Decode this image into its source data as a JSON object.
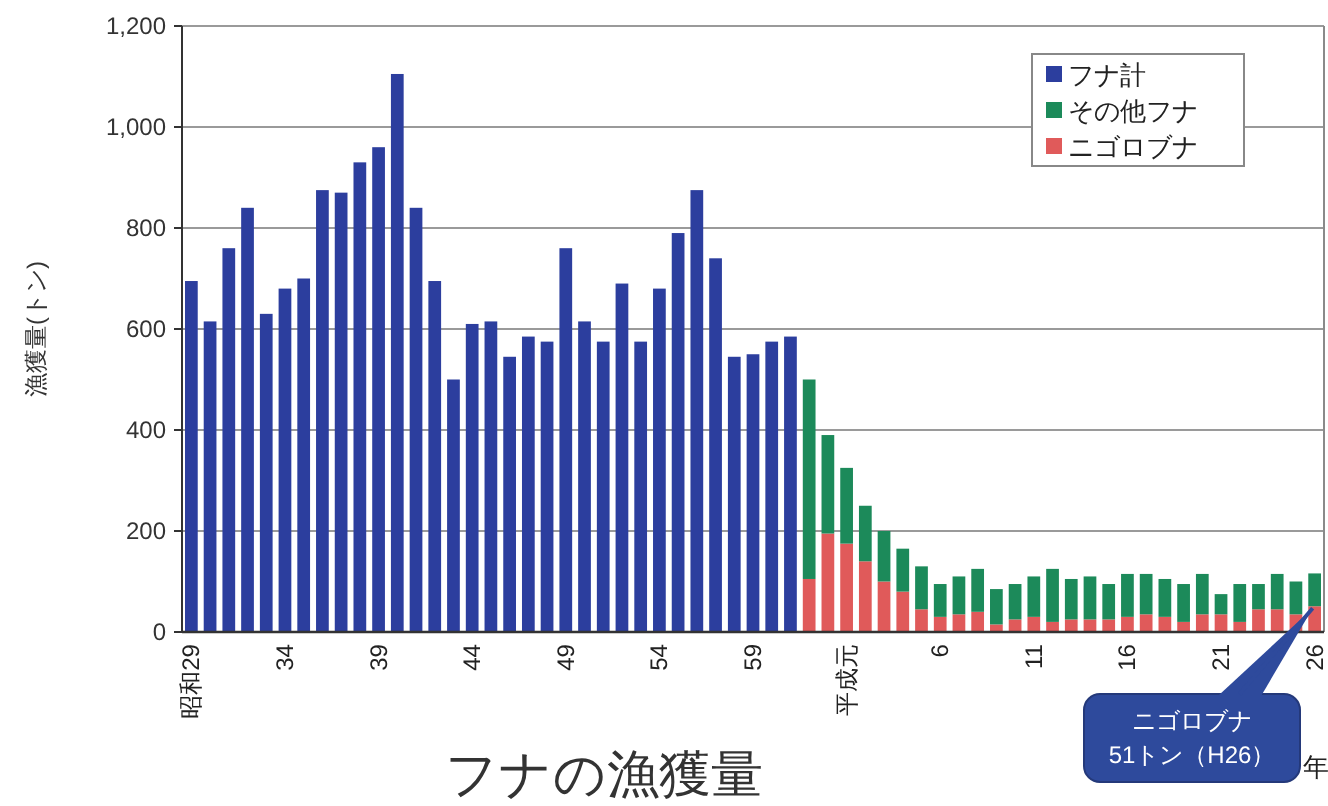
{
  "chart_data": {
    "type": "bar",
    "title": "フナの漁獲量",
    "ylabel": "漁獲量(トン)",
    "xlabel": "年",
    "categories": [
      "昭和29",
      null,
      null,
      null,
      null,
      "34",
      null,
      null,
      null,
      null,
      "39",
      null,
      null,
      null,
      null,
      "44",
      null,
      null,
      null,
      null,
      "49",
      null,
      null,
      null,
      null,
      "54",
      null,
      null,
      null,
      null,
      "59",
      null,
      null,
      null,
      null,
      "平成元",
      null,
      null,
      null,
      null,
      "6",
      null,
      null,
      null,
      null,
      "11",
      null,
      null,
      null,
      null,
      "16",
      null,
      null,
      null,
      null,
      "21",
      null,
      null,
      null,
      null,
      "26"
    ],
    "stacked": true,
    "series": [
      {
        "name": "ニゴロブナ",
        "color": "#e05a5a",
        "values": [
          null,
          null,
          null,
          null,
          null,
          null,
          null,
          null,
          null,
          null,
          null,
          null,
          null,
          null,
          null,
          null,
          null,
          null,
          null,
          null,
          null,
          null,
          null,
          null,
          null,
          null,
          null,
          null,
          null,
          null,
          null,
          null,
          null,
          105,
          195,
          175,
          140,
          100,
          80,
          45,
          30,
          35,
          40,
          15,
          25,
          30,
          20,
          25,
          25,
          25,
          30,
          35,
          30,
          20,
          35,
          35,
          20,
          45,
          45,
          35,
          51
        ]
      },
      {
        "name": "その他フナ",
        "color": "#1c8a5a",
        "values": [
          null,
          null,
          null,
          null,
          null,
          null,
          null,
          null,
          null,
          null,
          null,
          null,
          null,
          null,
          null,
          null,
          null,
          null,
          null,
          null,
          null,
          null,
          null,
          null,
          null,
          null,
          null,
          null,
          null,
          null,
          null,
          null,
          null,
          395,
          195,
          150,
          110,
          100,
          85,
          85,
          65,
          75,
          85,
          70,
          70,
          80,
          105,
          80,
          85,
          70,
          85,
          80,
          75,
          75,
          80,
          40,
          75,
          50,
          70,
          65,
          65
        ]
      },
      {
        "name": "フナ計",
        "color": "#2c3e9e",
        "values": [
          695,
          615,
          760,
          840,
          630,
          680,
          700,
          875,
          870,
          930,
          960,
          1105,
          840,
          695,
          500,
          610,
          615,
          545,
          585,
          575,
          760,
          615,
          575,
          690,
          575,
          680,
          790,
          875,
          740,
          545,
          550,
          575,
          585,
          null,
          null,
          null,
          null,
          null,
          null,
          null,
          null,
          null,
          null,
          null,
          null,
          null,
          null,
          null,
          null,
          null,
          null,
          null,
          null,
          null,
          null,
          null,
          null,
          null,
          null,
          null,
          null
        ]
      }
    ],
    "ylim": [
      0,
      1200
    ],
    "yticks": [
      0,
      200,
      400,
      600,
      800,
      {
        "value": 1000,
        "label": "1,000"
      },
      {
        "value": 1200,
        "label": "1,200"
      }
    ],
    "grid": "y",
    "legend": "top right",
    "annotations": [
      {
        "text": "ニゴロブナ\n51トン（H26）",
        "x": "26",
        "y": 51
      }
    ]
  }
}
